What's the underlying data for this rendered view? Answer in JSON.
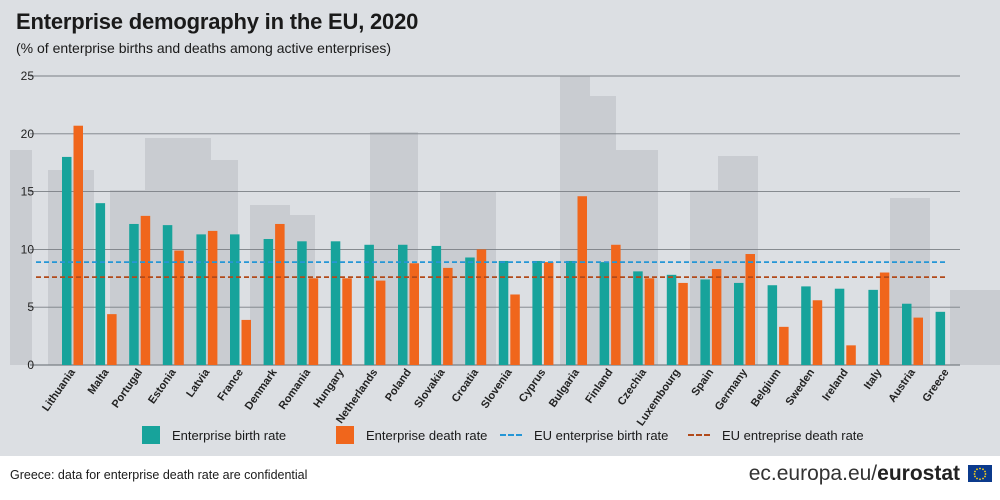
{
  "header": {
    "title": "Enterprise demography in the EU, 2020",
    "subtitle": "(% of enterprise births and deaths among active enterprises)"
  },
  "legend": {
    "birth": "Enterprise birth rate",
    "death": "Enterprise death rate",
    "eu_birth": "EU enterprise birth rate",
    "eu_death": "EU entreprise death rate"
  },
  "footer": {
    "note": "Greece: data for enterprise death rate are confidential",
    "source_prefix": "ec.europa.eu/",
    "source_brand": "eurostat"
  },
  "colors": {
    "birth": "#17a39b",
    "death": "#f0661c",
    "eu_birth": "#2596d6",
    "eu_death": "#b14a1b",
    "grid": "#7a7f85",
    "background": "#dcdfe3"
  },
  "chart_data": {
    "type": "bar",
    "title": "Enterprise demography in the EU, 2020",
    "subtitle": "(% of enterprise births and deaths among active enterprises)",
    "xlabel": "",
    "ylabel": "",
    "ylim": [
      0,
      25
    ],
    "yticks": [
      0,
      5,
      10,
      15,
      20,
      25
    ],
    "grid": true,
    "legend_position": "bottom",
    "categories": [
      "Lithuania",
      "Malta",
      "Portugal",
      "Estonia",
      "Latvia",
      "France",
      "Denmark",
      "Romania",
      "Hungary",
      "Netherlands",
      "Poland",
      "Slovakia",
      "Croatia",
      "Slovenia",
      "Cyprus",
      "Bulgaria",
      "Finland",
      "Czechia",
      "Luxembourg",
      "Spain",
      "Germany",
      "Belgium",
      "Sweden",
      "Ireland",
      "Italy",
      "Austria",
      "Greece"
    ],
    "series": [
      {
        "name": "Enterprise birth rate",
        "values": [
          18.0,
          14.0,
          12.2,
          12.1,
          11.3,
          11.3,
          10.9,
          10.7,
          10.7,
          10.4,
          10.4,
          10.3,
          9.3,
          9.0,
          9.0,
          9.0,
          8.9,
          8.1,
          7.8,
          7.4,
          7.1,
          6.9,
          6.8,
          6.6,
          6.5,
          5.3,
          4.6
        ]
      },
      {
        "name": "Enterprise death rate",
        "values": [
          20.7,
          4.4,
          12.9,
          9.9,
          11.6,
          3.9,
          12.2,
          7.5,
          7.5,
          7.3,
          8.8,
          8.4,
          10.0,
          6.1,
          8.9,
          14.6,
          10.4,
          7.5,
          7.1,
          8.3,
          9.6,
          3.3,
          5.6,
          1.7,
          8.0,
          4.1,
          null
        ]
      }
    ],
    "reference_lines": [
      {
        "name": "EU enterprise birth rate",
        "value": 8.9
      },
      {
        "name": "EU entreprise death rate",
        "value": 7.6
      }
    ]
  }
}
